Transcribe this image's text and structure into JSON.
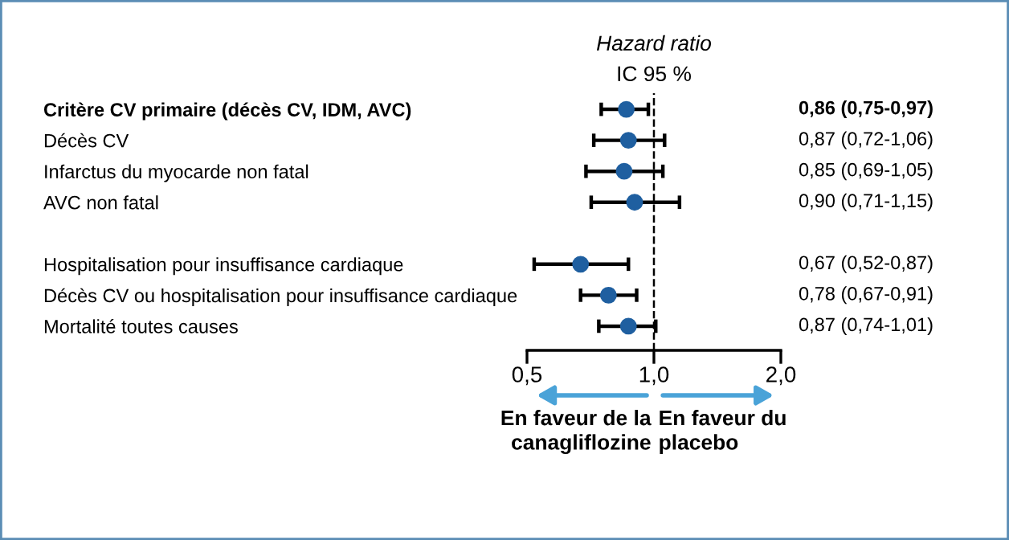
{
  "chart_data": {
    "type": "scatter",
    "orientation": "horizontal",
    "title": "Hazard ratio",
    "subtitle": "IC 95 %",
    "categories": [
      "Critère CV primaire (décès CV, IDM, AVC)",
      "Décès CV",
      "Infarctus du myocarde non fatal",
      "AVC non fatal",
      null,
      "Hospitalisation pour insuffisance cardiaque",
      "Décès CV ou hospitalisation pour insuffisance cardiaque",
      "Mortalité toutes causes"
    ],
    "series": [
      {
        "color": "#1f5fa0",
        "values": [
          0.86,
          0.87,
          0.85,
          0.9,
          null,
          0.67,
          0.78,
          0.87
        ],
        "errors": [
          [
            0.75,
            0.97
          ],
          [
            0.72,
            1.06
          ],
          [
            0.69,
            1.05
          ],
          [
            0.71,
            1.15
          ],
          null,
          [
            0.52,
            0.87
          ],
          [
            0.67,
            0.91
          ],
          [
            0.74,
            1.01
          ]
        ],
        "value_labels": [
          "0,86 (0,75-0,97)",
          "0,87 (0,72-1,06)",
          "0,85 (0,69-1,05)",
          "0,90 (0,71-1,15)",
          null,
          "0,67 (0,52-0,87)",
          "0,78 (0,67-0,91)",
          "0,87 (0,74-1,01)"
        ]
      }
    ],
    "log": "x",
    "xlim": [
      0.5,
      2.0
    ],
    "xticks": [
      {
        "value": 0.5,
        "label": "0,5"
      },
      {
        "value": 1.0,
        "label": "1,0"
      },
      {
        "value": 2.0,
        "label": "2,0"
      }
    ],
    "ref_lines": [
      {
        "axis": "x",
        "value": 1.0,
        "line_style": "dashed",
        "color": "#000000"
      }
    ],
    "annotations": [
      "En faveur de la\ncanagliflozine",
      "En faveur du\nplacebo"
    ],
    "marker": "circle",
    "grid": false,
    "legend": false
  }
}
